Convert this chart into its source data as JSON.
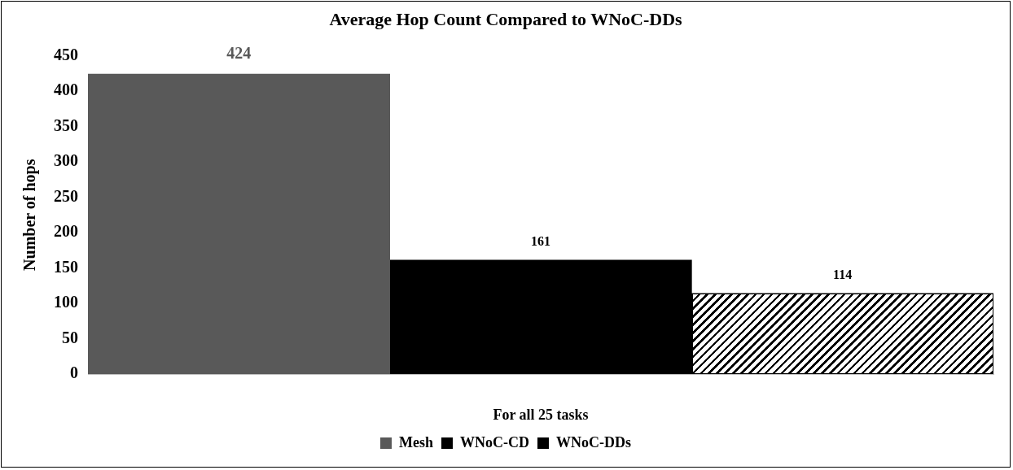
{
  "chart_data": {
    "type": "bar",
    "title": "Average Hop Count Compared to WNoC-DDs",
    "xlabel": "For all 25 tasks",
    "ylabel": "Number of hops",
    "categories": [
      null
    ],
    "series": [
      {
        "name": "Mesh",
        "color": "#595959",
        "values": [
          424
        ]
      },
      {
        "name": "WNoC-CD",
        "color": "#000000",
        "values": [
          161
        ]
      },
      {
        "name": "WNoC-DDs",
        "color": "#000000",
        "values": [
          114
        ]
      }
    ],
    "ylim": [
      0,
      450
    ],
    "yticks": [
      0,
      50,
      100,
      150,
      200,
      250,
      300,
      350,
      400,
      450
    ],
    "grid": false,
    "legend": "bottom",
    "data_labels": true
  }
}
